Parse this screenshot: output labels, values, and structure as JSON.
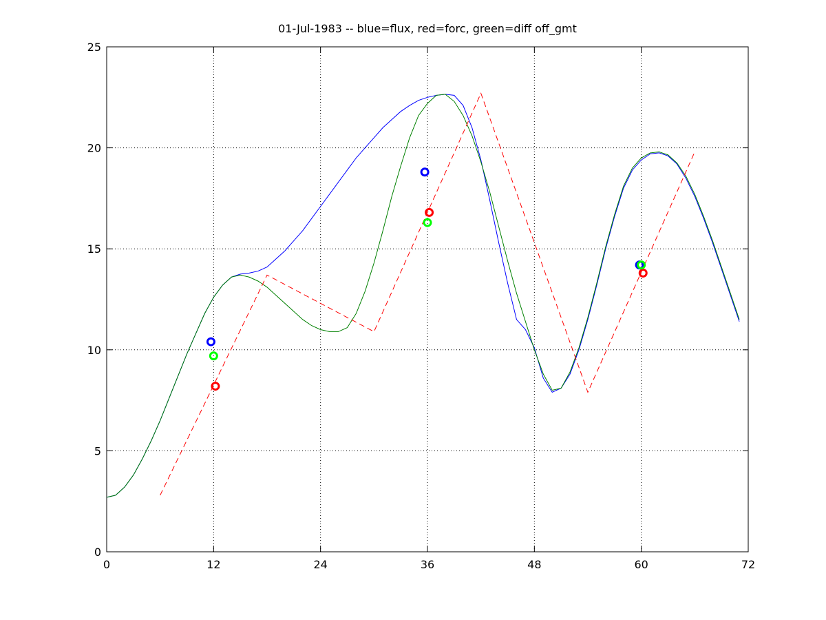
{
  "chart_data": {
    "type": "line",
    "title": "01-Jul-1983 -- blue=flux, red=forc, green=diff off_gmt",
    "xlim": [
      0,
      72
    ],
    "xticks": [
      0,
      12,
      24,
      36,
      48,
      60,
      72
    ],
    "ylim": [
      0,
      25
    ],
    "yticks": [
      0,
      5,
      10,
      15,
      20,
      25
    ],
    "grid": true,
    "x": [
      0,
      1,
      2,
      3,
      4,
      5,
      6,
      7,
      8,
      9,
      10,
      11,
      12,
      13,
      14,
      15,
      16,
      17,
      18,
      19,
      20,
      21,
      22,
      23,
      24,
      25,
      26,
      27,
      28,
      29,
      30,
      31,
      32,
      33,
      34,
      35,
      36,
      37,
      38,
      39,
      40,
      41,
      42,
      43,
      44,
      45,
      46,
      47,
      48,
      49,
      50,
      51,
      52,
      53,
      54,
      55,
      56,
      57,
      58,
      59,
      60,
      61,
      62,
      63,
      64,
      65,
      66,
      67,
      68,
      69,
      70,
      71
    ],
    "series": [
      {
        "color": "#0000ff",
        "style": "solid",
        "values": [
          2.7,
          2.8,
          3.2,
          3.8,
          4.6,
          5.5,
          6.5,
          7.6,
          8.7,
          9.8,
          10.8,
          11.8,
          12.6,
          13.2,
          13.6,
          13.75,
          13.8,
          13.9,
          14.1,
          14.5,
          14.9,
          15.4,
          15.9,
          16.5,
          17.1,
          17.7,
          18.3,
          18.9,
          19.5,
          20.0,
          20.5,
          21.0,
          21.4,
          21.8,
          22.1,
          22.35,
          22.5,
          22.6,
          22.65,
          22.6,
          22.1,
          21.0,
          19.4,
          17.4,
          15.3,
          13.3,
          11.5,
          11.0,
          10.1,
          8.6,
          7.9,
          8.1,
          8.8,
          10.0,
          11.5,
          13.2,
          15.0,
          16.6,
          18.0,
          18.9,
          19.4,
          19.7,
          19.75,
          19.6,
          19.2,
          18.5,
          17.6,
          16.5,
          15.3,
          14.0,
          12.7,
          11.4
        ]
      },
      {
        "color": "#008000",
        "style": "solid",
        "values": [
          2.7,
          2.8,
          3.2,
          3.8,
          4.6,
          5.5,
          6.5,
          7.6,
          8.7,
          9.8,
          10.8,
          11.8,
          12.6,
          13.2,
          13.6,
          13.7,
          13.6,
          13.4,
          13.1,
          12.7,
          12.3,
          11.9,
          11.5,
          11.2,
          11.0,
          10.9,
          10.9,
          11.1,
          11.8,
          12.9,
          14.3,
          15.9,
          17.6,
          19.1,
          20.5,
          21.6,
          22.2,
          22.6,
          22.65,
          22.3,
          21.6,
          20.6,
          19.3,
          17.8,
          16.1,
          14.4,
          12.8,
          11.4,
          10.0,
          8.8,
          8.0,
          8.1,
          8.9,
          10.1,
          11.6,
          13.3,
          15.1,
          16.7,
          18.1,
          19.0,
          19.5,
          19.75,
          19.8,
          19.65,
          19.25,
          18.6,
          17.7,
          16.6,
          15.4,
          14.1,
          12.8,
          11.5
        ]
      },
      {
        "color": "#ff0000",
        "style": "dashed",
        "x": [
          6,
          18,
          30,
          42,
          54,
          66
        ],
        "values": [
          2.8,
          13.7,
          10.9,
          22.7,
          7.9,
          19.8
        ]
      },
      {
        "color": "#0000ff",
        "style": "marker",
        "x": [
          11.7,
          35.7,
          59.8
        ],
        "values": [
          10.4,
          18.8,
          14.2
        ]
      },
      {
        "color": "#ff0000",
        "style": "marker",
        "x": [
          12.2,
          36.2,
          60.2
        ],
        "values": [
          8.2,
          16.8,
          13.8
        ]
      },
      {
        "color": "#00ff00",
        "style": "marker",
        "x": [
          12,
          36,
          60
        ],
        "values": [
          9.7,
          16.3,
          14.2
        ]
      }
    ]
  }
}
